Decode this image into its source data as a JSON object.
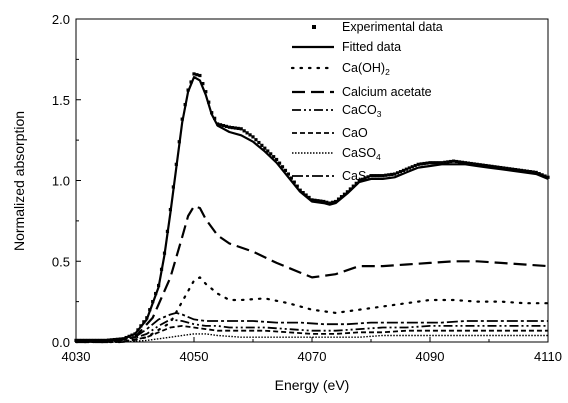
{
  "chart_data": {
    "type": "line",
    "xlabel": "Energy (eV)",
    "ylabel": "Normalized absorption",
    "xlim": [
      4030,
      4110
    ],
    "ylim": [
      0.0,
      2.0
    ],
    "x_ticks": [
      "4030",
      "4050",
      "4070",
      "4090",
      "4110"
    ],
    "y_ticks": [
      "0.0",
      "0.5",
      "1.0",
      "1.5",
      "2.0"
    ],
    "x_tick_values": [
      4030,
      4050,
      4070,
      4090,
      4110
    ],
    "y_tick_values": [
      0.0,
      0.5,
      1.0,
      1.5,
      2.0
    ],
    "grid": false,
    "legend_position": "top-right",
    "series": [
      {
        "name": "Experimental data",
        "style": "square-markers",
        "x": [
          4030,
          4035,
          4038,
          4040,
          4042,
          4044,
          4045,
          4046,
          4047,
          4048,
          4049,
          4050,
          4051,
          4052,
          4053,
          4054,
          4055,
          4056,
          4058,
          4060,
          4062,
          4064,
          4066,
          4068,
          4070,
          4072,
          4073,
          4074,
          4076,
          4078,
          4080,
          4082,
          4084,
          4086,
          4088,
          4090,
          4092,
          4094,
          4096,
          4098,
          4100,
          4102,
          4104,
          4106,
          4108,
          4110
        ],
        "y": [
          0.01,
          0.01,
          0.02,
          0.05,
          0.15,
          0.35,
          0.55,
          0.82,
          1.1,
          1.38,
          1.56,
          1.66,
          1.65,
          1.55,
          1.42,
          1.35,
          1.34,
          1.33,
          1.32,
          1.27,
          1.2,
          1.13,
          1.04,
          0.94,
          0.88,
          0.87,
          0.86,
          0.87,
          0.93,
          1.0,
          1.03,
          1.03,
          1.04,
          1.07,
          1.1,
          1.11,
          1.11,
          1.12,
          1.11,
          1.1,
          1.09,
          1.08,
          1.07,
          1.06,
          1.05,
          1.02
        ]
      },
      {
        "name": "Fitted data",
        "style": "solid",
        "x": [
          4030,
          4035,
          4038,
          4040,
          4042,
          4044,
          4045,
          4046,
          4047,
          4048,
          4049,
          4050,
          4051,
          4052,
          4053,
          4054,
          4055,
          4056,
          4058,
          4060,
          4062,
          4064,
          4066,
          4068,
          4070,
          4072,
          4073,
          4074,
          4076,
          4078,
          4080,
          4082,
          4084,
          4086,
          4088,
          4090,
          4092,
          4094,
          4096,
          4098,
          4100,
          4102,
          4104,
          4106,
          4108,
          4110
        ],
        "y": [
          0.01,
          0.01,
          0.02,
          0.05,
          0.14,
          0.34,
          0.54,
          0.8,
          1.08,
          1.36,
          1.55,
          1.64,
          1.62,
          1.53,
          1.41,
          1.34,
          1.32,
          1.3,
          1.28,
          1.24,
          1.18,
          1.11,
          1.02,
          0.93,
          0.87,
          0.86,
          0.85,
          0.86,
          0.92,
          0.99,
          1.01,
          1.01,
          1.02,
          1.05,
          1.08,
          1.09,
          1.1,
          1.1,
          1.1,
          1.09,
          1.08,
          1.07,
          1.06,
          1.05,
          1.04,
          1.01
        ]
      },
      {
        "name": "Ca(OH)2",
        "style": "dotted-sparse",
        "x": [
          4030,
          4038,
          4042,
          4046,
          4048,
          4050,
          4051,
          4052,
          4054,
          4056,
          4058,
          4062,
          4066,
          4070,
          4074,
          4078,
          4082,
          4086,
          4090,
          4094,
          4098,
          4102,
          4106,
          4110
        ],
        "y": [
          0.0,
          0.0,
          0.03,
          0.12,
          0.25,
          0.38,
          0.4,
          0.36,
          0.3,
          0.26,
          0.26,
          0.27,
          0.24,
          0.2,
          0.18,
          0.2,
          0.22,
          0.24,
          0.26,
          0.26,
          0.25,
          0.25,
          0.24,
          0.24
        ]
      },
      {
        "name": "Calcium acetate",
        "style": "long-dash",
        "x": [
          4030,
          4036,
          4040,
          4043,
          4046,
          4048,
          4049,
          4050,
          4051,
          4052,
          4054,
          4056,
          4060,
          4064,
          4068,
          4070,
          4074,
          4078,
          4082,
          4086,
          4090,
          4094,
          4098,
          4102,
          4106,
          4110
        ],
        "y": [
          0.0,
          0.0,
          0.03,
          0.15,
          0.4,
          0.65,
          0.78,
          0.84,
          0.83,
          0.76,
          0.66,
          0.61,
          0.56,
          0.49,
          0.43,
          0.4,
          0.42,
          0.47,
          0.47,
          0.48,
          0.49,
          0.5,
          0.5,
          0.49,
          0.48,
          0.47
        ]
      },
      {
        "name": "CaCO3",
        "style": "dash-dot-dot",
        "x": [
          4030,
          4038,
          4042,
          4044,
          4046,
          4048,
          4050,
          4052,
          4054,
          4056,
          4058,
          4062,
          4066,
          4070,
          4074,
          4078,
          4082,
          4086,
          4090,
          4094,
          4098,
          4102,
          4106,
          4110
        ],
        "y": [
          0.0,
          0.0,
          0.05,
          0.1,
          0.14,
          0.13,
          0.11,
          0.1,
          0.1,
          0.09,
          0.09,
          0.09,
          0.08,
          0.07,
          0.07,
          0.08,
          0.09,
          0.09,
          0.1,
          0.1,
          0.1,
          0.1,
          0.1,
          0.1
        ]
      },
      {
        "name": "CaO",
        "style": "short-dash",
        "x": [
          4030,
          4038,
          4042,
          4044,
          4046,
          4048,
          4050,
          4052,
          4054,
          4058,
          4062,
          4066,
          4070,
          4074,
          4078,
          4082,
          4086,
          4090,
          4094,
          4098,
          4102,
          4106,
          4110
        ],
        "y": [
          0.0,
          0.0,
          0.03,
          0.06,
          0.09,
          0.1,
          0.09,
          0.08,
          0.07,
          0.07,
          0.07,
          0.06,
          0.05,
          0.05,
          0.06,
          0.06,
          0.07,
          0.07,
          0.07,
          0.07,
          0.07,
          0.07,
          0.07
        ]
      },
      {
        "name": "CaSO4",
        "style": "dotted-dense",
        "x": [
          4030,
          4038,
          4042,
          4044,
          4046,
          4048,
          4050,
          4052,
          4054,
          4058,
          4062,
          4066,
          4070,
          4074,
          4078,
          4082,
          4086,
          4090,
          4094,
          4098,
          4102,
          4106,
          4110
        ],
        "y": [
          0.0,
          0.0,
          0.01,
          0.02,
          0.03,
          0.04,
          0.05,
          0.05,
          0.04,
          0.03,
          0.03,
          0.03,
          0.03,
          0.03,
          0.03,
          0.04,
          0.04,
          0.04,
          0.04,
          0.04,
          0.04,
          0.04,
          0.04
        ]
      },
      {
        "name": "CaS",
        "style": "dash-dot",
        "x": [
          4030,
          4036,
          4040,
          4042,
          4044,
          4046,
          4047,
          4048,
          4050,
          4052,
          4056,
          4060,
          4064,
          4068,
          4072,
          4076,
          4080,
          4084,
          4088,
          4092,
          4096,
          4100,
          4104,
          4110
        ],
        "y": [
          0.0,
          0.0,
          0.03,
          0.08,
          0.14,
          0.17,
          0.18,
          0.17,
          0.14,
          0.13,
          0.13,
          0.13,
          0.12,
          0.12,
          0.11,
          0.11,
          0.12,
          0.12,
          0.12,
          0.12,
          0.13,
          0.13,
          0.13,
          0.13
        ]
      }
    ],
    "legend_labels": {
      "experimental": "Experimental data",
      "fitted": "Fitted data",
      "caoh2_main": "Ca(OH)",
      "caoh2_sub": "2",
      "acetate": "Calcium acetate",
      "caco3_main": "CaCO",
      "caco3_sub": "3",
      "cao": "CaO",
      "caso4_main": "CaSO",
      "caso4_sub": "4",
      "cas": "CaS"
    }
  }
}
